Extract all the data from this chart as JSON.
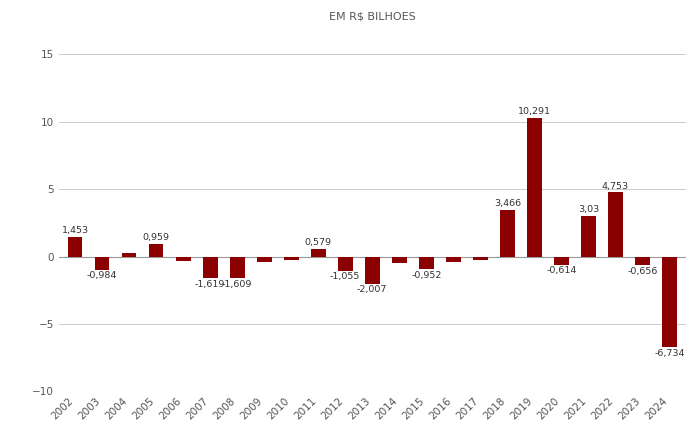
{
  "title": "EM R$ BILHOES",
  "years": [
    2002,
    2003,
    2004,
    2005,
    2006,
    2007,
    2008,
    2009,
    2010,
    2011,
    2012,
    2013,
    2014,
    2015,
    2016,
    2017,
    2018,
    2019,
    2020,
    2021,
    2022,
    2023,
    2024
  ],
  "values": [
    1.453,
    -0.984,
    0.28,
    0.959,
    -0.32,
    -1.619,
    -1.609,
    -0.38,
    -0.22,
    0.579,
    -1.055,
    -2.007,
    -0.45,
    -0.952,
    -0.38,
    -0.28,
    3.466,
    10.291,
    -0.614,
    3.03,
    4.753,
    -0.656,
    -6.734
  ],
  "label_map": {
    "0": "1,453",
    "1": "-0,984",
    "3": "0,959",
    "5": "-1,619",
    "6": "-1,609",
    "9": "0,579",
    "10": "-1,055",
    "11": "-2,007",
    "13": "-0,952",
    "16": "3,466",
    "17": "10,291",
    "18": "-0,614",
    "19": "3,03",
    "20": "4,753",
    "21": "-0,656",
    "22": "-6,734"
  },
  "bar_color": "#8B0000",
  "background_color": "#ffffff",
  "grid_color": "#cccccc",
  "zero_line_color": "#999999",
  "label_color": "#333333",
  "title_color": "#555555",
  "tick_color": "#555555",
  "ylim": [
    -10,
    17
  ],
  "yticks": [
    -10,
    -5,
    0,
    5,
    10,
    15
  ],
  "bar_width": 0.55,
  "title_fontsize": 8.0,
  "tick_fontsize": 7.5,
  "label_fontsize": 6.8
}
